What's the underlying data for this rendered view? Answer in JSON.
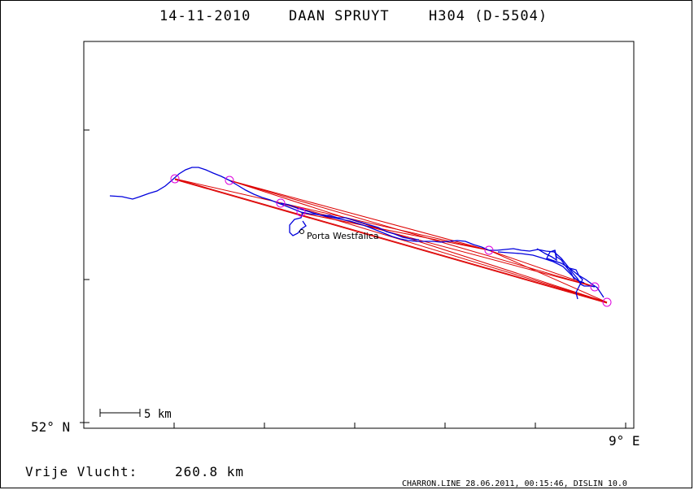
{
  "header": {
    "date": "14-11-2010",
    "pilot": "DAAN SPRUYT",
    "glider": "H304 (D-5504)"
  },
  "axes": {
    "lat_label": "52° N",
    "lon_label": "9° E"
  },
  "scale": {
    "label": "5 km"
  },
  "waypoint": {
    "label": "Porta Westfalica"
  },
  "footer": {
    "distance_label": "Vrije Vlucht:",
    "distance_value": "260.8 km",
    "credit": "CHARRON.LINE 28.06.2011, 00:15:46, DISLIN 10.0"
  },
  "colors": {
    "track": "#0000dd",
    "task_lines": "#dd0000",
    "turnpoints": "#dd00dd",
    "axes": "#000000"
  }
}
